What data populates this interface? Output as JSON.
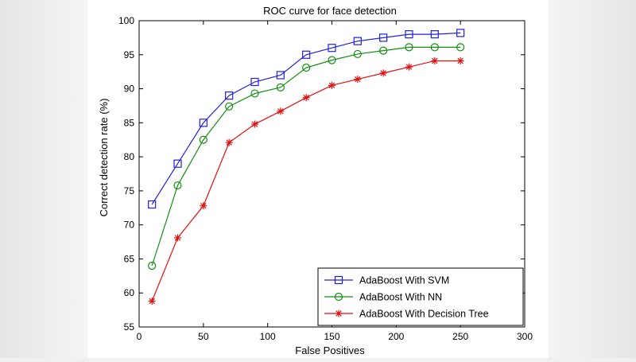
{
  "chart_data": {
    "type": "line",
    "title": "ROC curve for face detection",
    "xlabel": "False Positives",
    "ylabel": "Correct detection rate (%)",
    "xlim": [
      0,
      300
    ],
    "ylim": [
      55,
      100
    ],
    "xticks": [
      0,
      50,
      100,
      150,
      200,
      250,
      300
    ],
    "yticks": [
      55,
      60,
      65,
      70,
      75,
      80,
      85,
      90,
      95,
      100
    ],
    "grid": false,
    "legend_position": "bottom-right",
    "x": [
      10,
      30,
      50,
      70,
      90,
      110,
      130,
      150,
      170,
      190,
      210,
      230,
      250
    ],
    "series": [
      {
        "name": "AdaBoost With SVM",
        "color": "#2020e0",
        "marker": "square",
        "values": [
          73,
          79,
          85,
          89,
          91,
          92,
          95,
          96,
          97,
          97.5,
          98,
          98,
          98.2
        ]
      },
      {
        "name": "AdaBoost With NN",
        "color": "#109010",
        "marker": "circle",
        "values": [
          64,
          75.8,
          82.5,
          87.4,
          89.3,
          90.2,
          93.1,
          94.2,
          95.1,
          95.6,
          96.1,
          96.1,
          96.1
        ]
      },
      {
        "name": "AdaBoost With Decision Tree",
        "color": "#e01010",
        "marker": "star",
        "values": [
          58.8,
          68.1,
          72.8,
          82.1,
          84.8,
          86.7,
          88.7,
          90.5,
          91.4,
          92.3,
          93.2,
          94.1,
          94.1
        ]
      }
    ]
  }
}
